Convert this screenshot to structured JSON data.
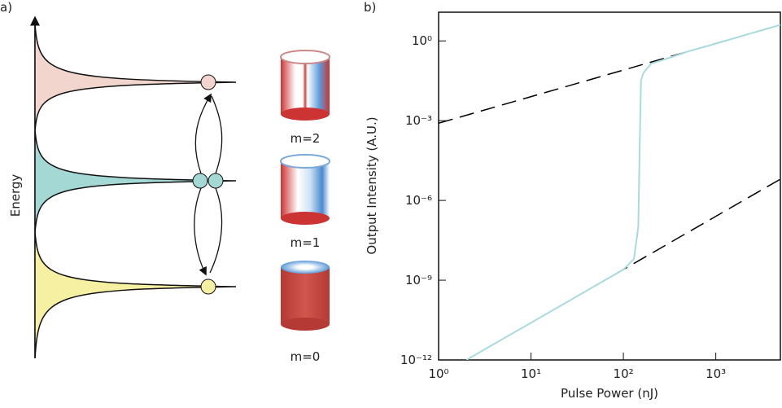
{
  "panel_a": {
    "label": "a)",
    "axis_label": "Energy",
    "modes": [
      "m=2",
      "m=1",
      "m=0"
    ]
  },
  "chart_data": {
    "type": "line",
    "panel_label": "b)",
    "x_label": "Pulse Power (nJ)",
    "y_label": "Output Intensity (A.U.)",
    "log_x": true,
    "log_y": true,
    "xlim": [
      1,
      5000
    ],
    "ylim": [
      1e-12,
      12
    ],
    "xticks": [
      {
        "value": 1,
        "label": "10⁰"
      },
      {
        "value": 10,
        "label": "10¹"
      },
      {
        "value": 100,
        "label": "10²"
      },
      {
        "value": 1000,
        "label": "10³"
      }
    ],
    "yticks": [
      {
        "value": 1e-12,
        "label": "10⁻¹²"
      },
      {
        "value": 1e-09,
        "label": "10⁻⁹"
      },
      {
        "value": 1e-06,
        "label": "10⁻⁶"
      },
      {
        "value": 0.001,
        "label": "10⁻³"
      },
      {
        "value": 1,
        "label": "10⁰"
      }
    ],
    "series": [
      {
        "color": "#000000",
        "dashed": true,
        "x": [
          1,
          5000
        ],
        "values": [
          0.0008,
          4
        ]
      },
      {
        "color": "#000000",
        "dashed": true,
        "x": [
          50,
          5000
        ],
        "values": [
          6.3e-10,
          6.3e-06
        ]
      },
      {
        "color": "#a8dbe0",
        "dashed": false,
        "x": [
          2,
          5,
          10,
          20,
          50,
          100,
          130,
          145,
          150,
          155,
          165,
          200,
          300,
          500,
          1000,
          2000,
          5000
        ],
        "values": [
          1e-12,
          6.3e-12,
          2.5e-11,
          1e-10,
          6.3e-10,
          2.5e-09,
          6.3e-09,
          1e-07,
          0.0001,
          0.032,
          0.063,
          0.14,
          0.22,
          0.4,
          0.79,
          1.6,
          4
        ]
      }
    ]
  }
}
